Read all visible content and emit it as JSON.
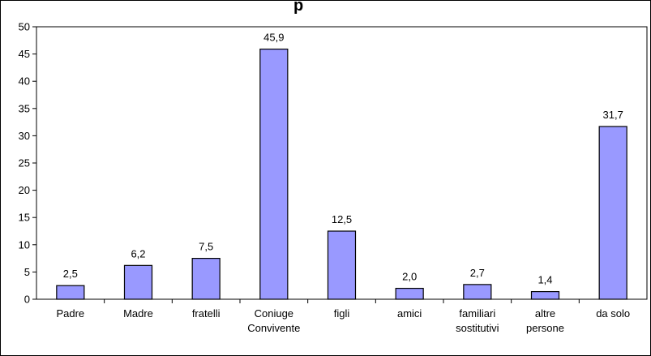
{
  "chart_data": {
    "type": "bar",
    "title": "p",
    "categories": [
      [
        "Padre"
      ],
      [
        "Madre"
      ],
      [
        "fratelli"
      ],
      [
        "Coniuge",
        "Convivente"
      ],
      [
        "figli"
      ],
      [
        "amici"
      ],
      [
        "familiari",
        "sostitutivi"
      ],
      [
        "altre",
        "persone"
      ],
      [
        "da solo"
      ]
    ],
    "values": [
      2.5,
      6.2,
      7.5,
      45.9,
      12.5,
      2.0,
      2.7,
      1.4,
      31.7
    ],
    "value_labels": [
      "2,5",
      "6,2",
      "7,5",
      "45,9",
      "12,5",
      "2,0",
      "2,7",
      "1,4",
      "31,7"
    ],
    "ylim": [
      0,
      50
    ],
    "yticks": [
      0,
      5,
      10,
      15,
      20,
      25,
      30,
      35,
      40,
      45,
      50
    ],
    "xlabel": "",
    "ylabel": "",
    "grid": false,
    "legend": "none",
    "bar_color": "#9999ff",
    "bar_stroke": "#000000"
  }
}
